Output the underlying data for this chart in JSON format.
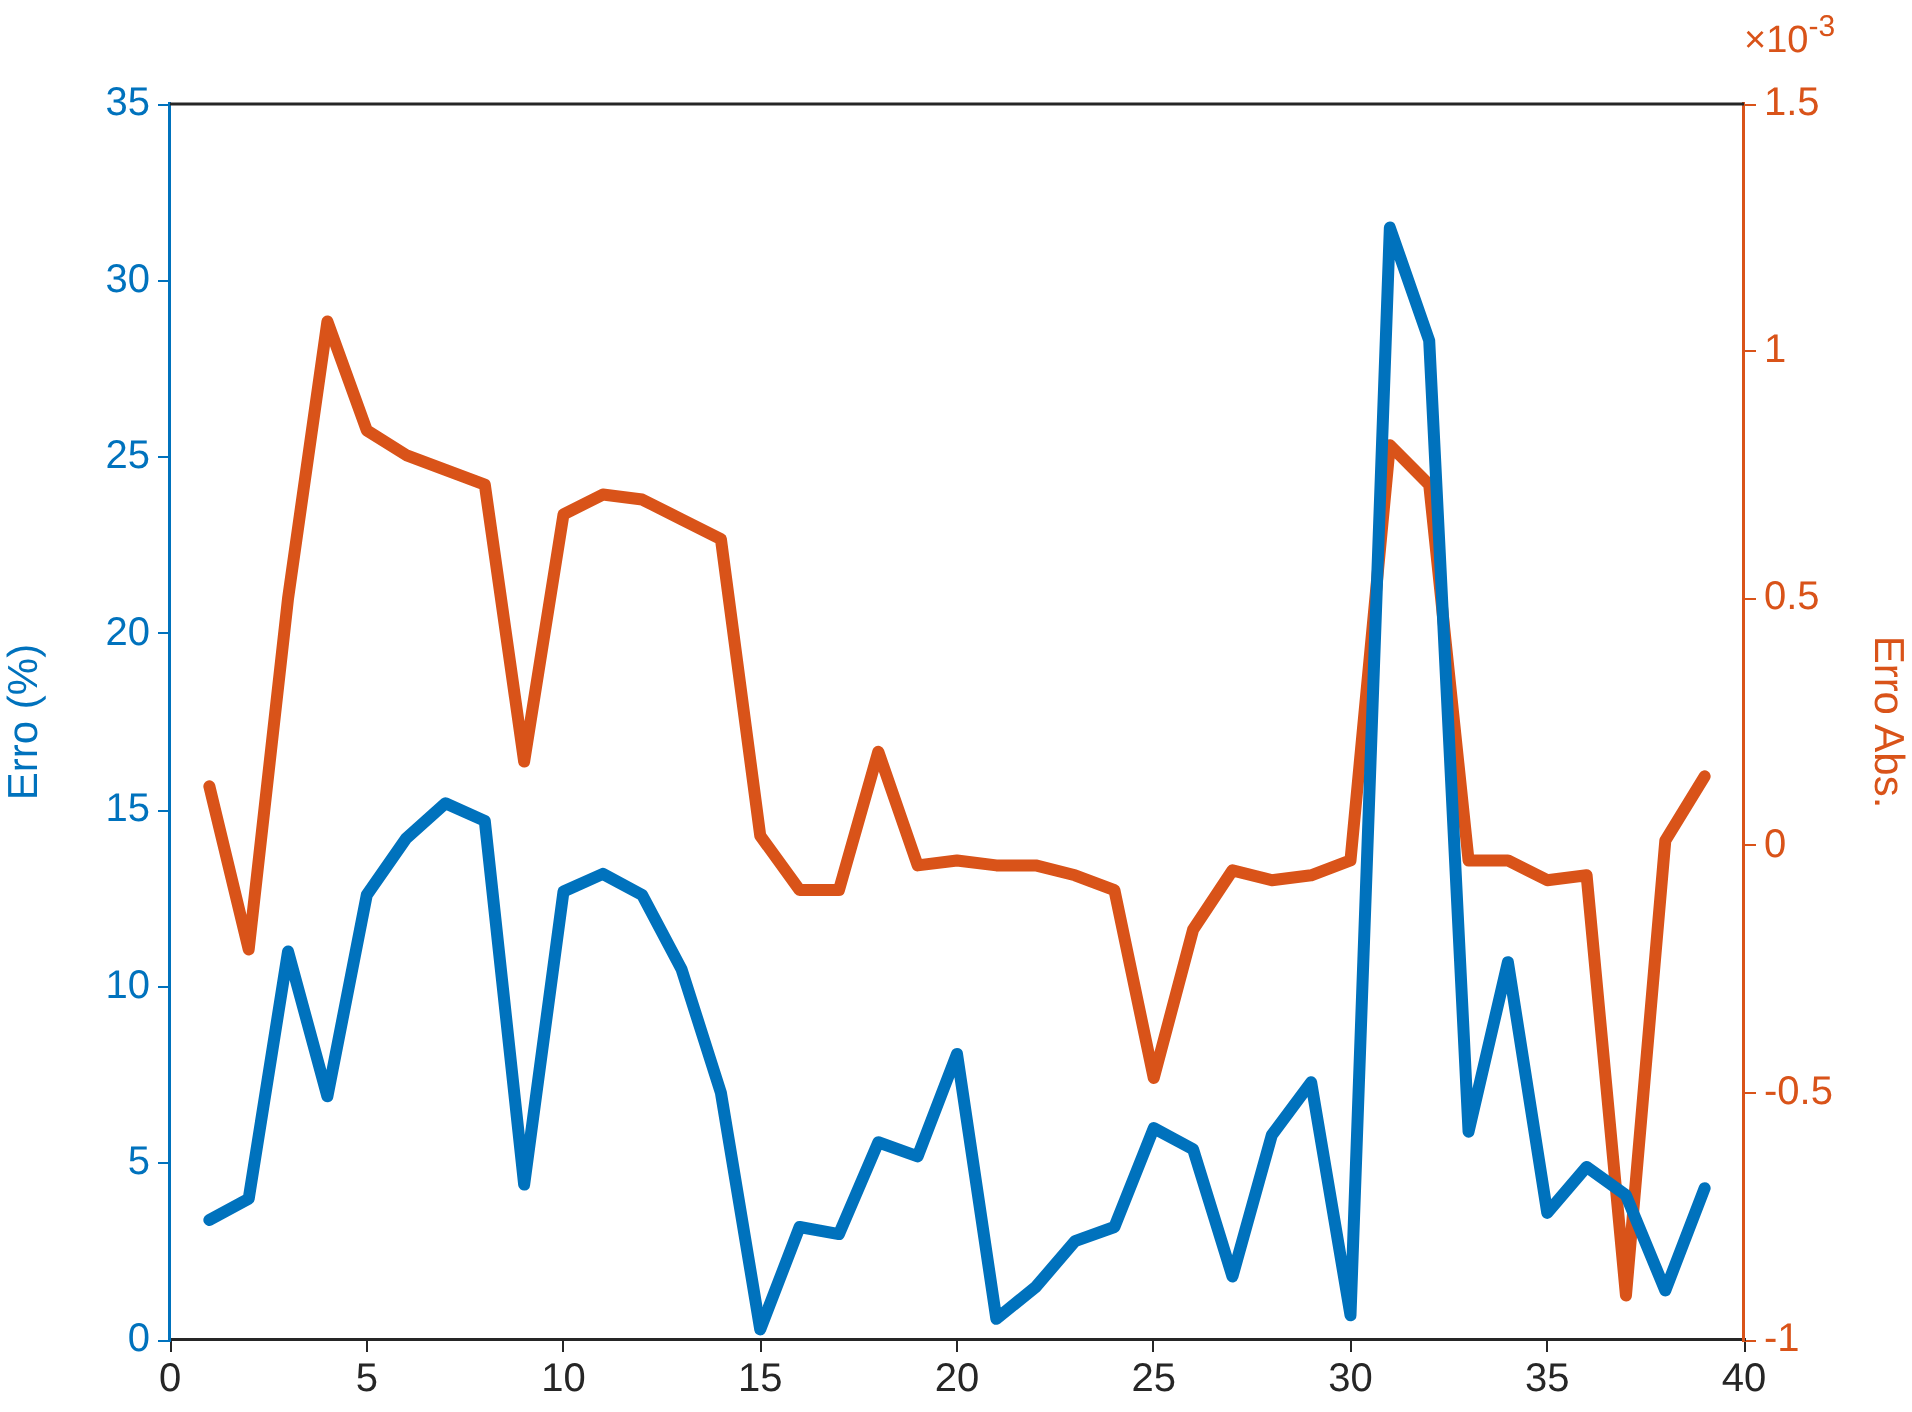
{
  "chart_data": {
    "type": "line",
    "ylabel": "Erro (%)",
    "y2label": "Erro Abs.",
    "annotations": [
      "×10$^{-3}$"
    ],
    "x": [
      1,
      2,
      3,
      4,
      5,
      6,
      7,
      8,
      9,
      10,
      11,
      12,
      13,
      14,
      15,
      16,
      17,
      18,
      19,
      20,
      21,
      22,
      23,
      24,
      25,
      26,
      27,
      28,
      29,
      30,
      31,
      32,
      33,
      34,
      35,
      36,
      37,
      38,
      39
    ],
    "xlim": [
      0,
      40
    ],
    "xticks": [
      0,
      5,
      10,
      15,
      20,
      25,
      30,
      35,
      40
    ],
    "ylim": [
      0,
      35
    ],
    "yticks": [
      0,
      5,
      10,
      15,
      20,
      25,
      30,
      35
    ],
    "y2lim": [
      -1,
      1.5
    ],
    "y2ticks": [
      -1,
      -0.5,
      0,
      0.5,
      1,
      1.5
    ],
    "grid": false,
    "legend": false,
    "marker": "none",
    "line_style": "solid",
    "series": [
      {
        "color": "#0072bd",
        "values": [
          3.4,
          4.0,
          11.0,
          6.9,
          12.6,
          14.2,
          15.2,
          14.7,
          4.4,
          12.7,
          13.2,
          12.6,
          10.5,
          7.0,
          0.3,
          3.2,
          3.0,
          5.6,
          5.2,
          8.1,
          0.6,
          1.5,
          2.8,
          3.2,
          6.0,
          5.4,
          1.8,
          5.8,
          7.3,
          0.7,
          31.5,
          28.3,
          5.9,
          10.7,
          3.6,
          4.9,
          4.1,
          1.4,
          4.3
        ]
      },
      {
        "color": "#d95319",
        "axis": "y2",
        "values": [
          0.12,
          -0.21,
          0.5,
          1.06,
          0.84,
          0.79,
          0.76,
          0.73,
          0.17,
          0.67,
          0.71,
          0.7,
          0.66,
          0.62,
          0.02,
          -0.09,
          -0.09,
          0.19,
          -0.04,
          -0.03,
          -0.04,
          -0.04,
          -0.06,
          -0.09,
          -0.47,
          -0.17,
          -0.05,
          -0.07,
          -0.06,
          -0.03,
          0.81,
          0.73,
          -0.03,
          -0.03,
          -0.07,
          -0.06,
          -0.91,
          0.01,
          0.14
        ]
      }
    ]
  }
}
